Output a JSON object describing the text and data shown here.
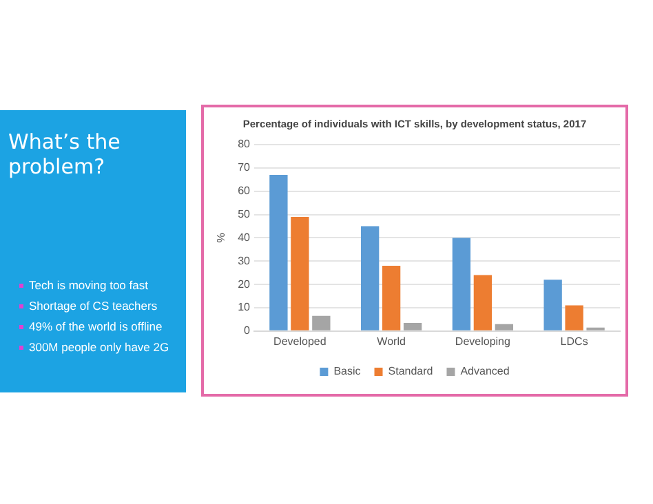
{
  "chart_data": {
    "type": "bar",
    "title": "Percentage of individuals with ICT skills, by development status, 2017",
    "ylabel": "%",
    "categories": [
      "Developed",
      "World",
      "Developing",
      "LDCs"
    ],
    "series": [
      {
        "name": "Basic",
        "color": "#5b9bd5",
        "values": [
          67,
          45,
          40,
          22
        ]
      },
      {
        "name": "Standard",
        "color": "#ed7d31",
        "values": [
          49,
          28,
          24,
          11
        ]
      },
      {
        "name": "Advanced",
        "color": "#a5a5a5",
        "values": [
          6.5,
          3.5,
          3,
          1.5
        ]
      }
    ],
    "ylim": [
      0,
      80
    ],
    "yticks": [
      0,
      10,
      20,
      30,
      40,
      50,
      60,
      70,
      80
    ],
    "grid": "y",
    "legend": "bottom",
    "annotations": [
      "What’s the problem?",
      "Tech is moving too fast",
      "Shortage of CS teachers",
      "49% of the world is offline",
      "300M people only have 2G"
    ]
  }
}
